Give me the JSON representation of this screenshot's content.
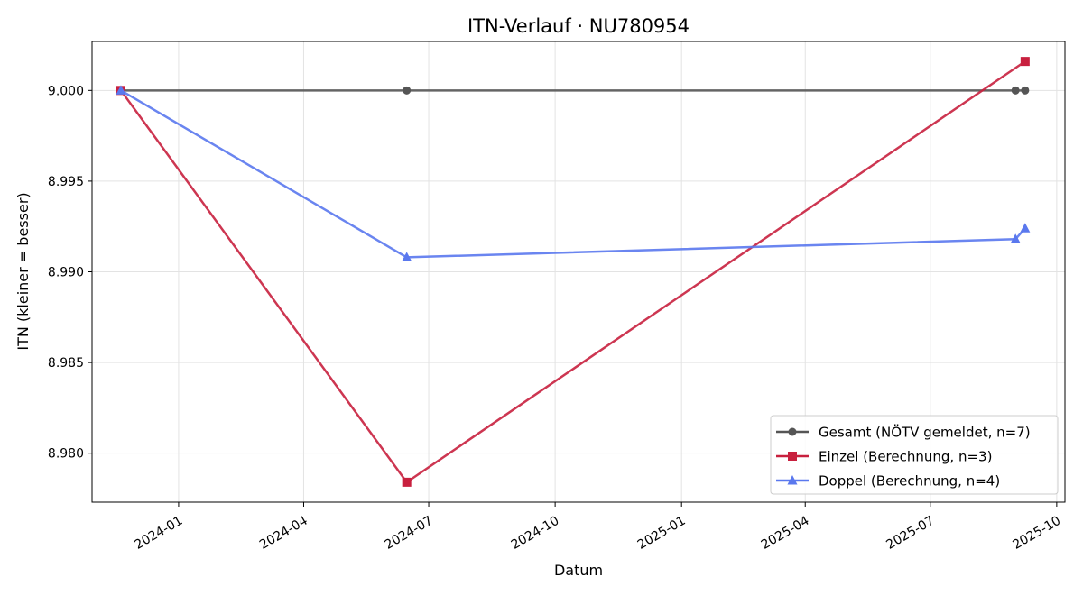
{
  "chart_data": {
    "type": "line",
    "title": "ITN-Verlauf · NU780954",
    "xlabel": "Datum",
    "ylabel": "ITN  (kleiner = besser)",
    "x_type": "date",
    "xlim": [
      "2023-10-30",
      "2025-10-07"
    ],
    "ylim": [
      8.9773,
      9.0027
    ],
    "x_ticks": [
      "2024-01",
      "2024-04",
      "2024-07",
      "2024-10",
      "2025-01",
      "2025-04",
      "2025-07",
      "2025-10"
    ],
    "x_tick_dates": [
      "2024-01-01",
      "2024-04-01",
      "2024-07-01",
      "2024-10-01",
      "2025-01-01",
      "2025-04-01",
      "2025-07-01",
      "2025-10-01"
    ],
    "y_ticks": [
      "8.980",
      "8.985",
      "8.990",
      "8.995",
      "9.000"
    ],
    "y_tick_values": [
      8.98,
      8.985,
      8.99,
      8.995,
      9.0
    ],
    "grid": true,
    "legend_position": "bottom-right",
    "series": [
      {
        "name": "Gesamt (NÖTV gemeldet, n=7)",
        "color": "#555555",
        "marker": "circle",
        "x": [
          "2023-11-20",
          "2024-06-15",
          "2025-09-01",
          "2025-09-08"
        ],
        "y": [
          9.0,
          9.0,
          9.0,
          9.0
        ]
      },
      {
        "name": "Einzel (Berechnung, n=3)",
        "color": "#c8203e",
        "marker": "square",
        "x": [
          "2023-11-20",
          "2024-06-15",
          "2025-09-08"
        ],
        "y": [
          9.0,
          8.9784,
          9.0016
        ]
      },
      {
        "name": "Doppel (Berechnung, n=4)",
        "color": "#5a78ee",
        "marker": "triangle",
        "x": [
          "2023-11-20",
          "2024-06-15",
          "2025-09-01",
          "2025-09-08"
        ],
        "y": [
          9.0,
          8.9908,
          8.9918,
          8.9924
        ]
      }
    ]
  }
}
